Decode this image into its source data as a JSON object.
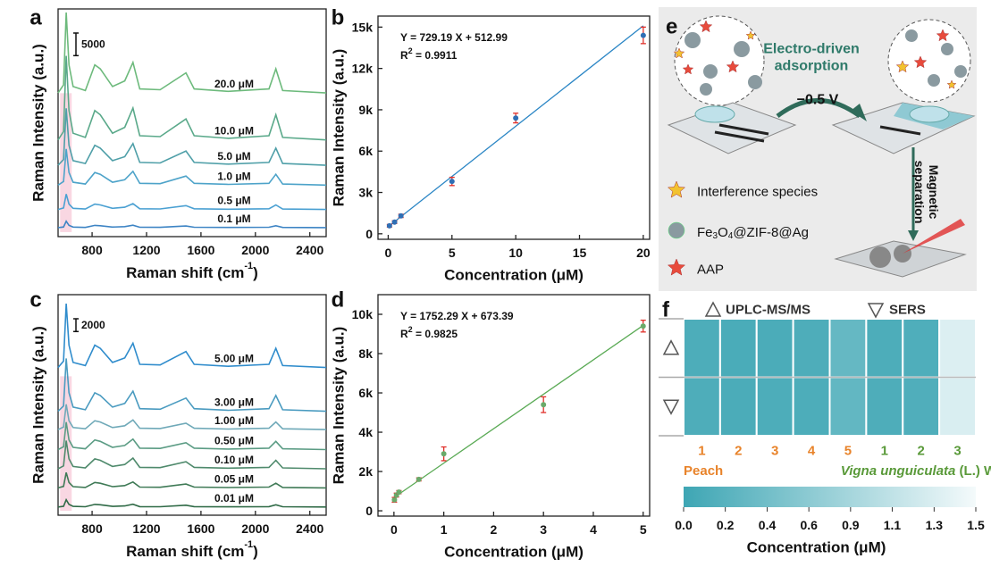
{
  "chart_data": [
    {
      "label": "a",
      "type": "line",
      "xlabel": [
        "Raman shift (cm",
        "-1",
        ")"
      ],
      "ylabel": "Raman Intensity (a.u.)",
      "x": [
        550,
        590,
        610,
        630,
        660,
        750,
        820,
        860,
        950,
        1040,
        1100,
        1150,
        1300,
        1490,
        1550,
        1800,
        2100,
        2150,
        2200,
        2520
      ],
      "xlim": [
        550,
        2520
      ],
      "xticks": [
        800,
        1200,
        1600,
        2000,
        2400
      ],
      "ylim": [
        0,
        50400
      ],
      "scale_bar": 5000,
      "series": [
        {
          "name": "20.0 μM",
          "color": "#6dba7c",
          "values": [
            31800,
            33580,
            49600,
            38030,
            33220,
            32330,
            38030,
            37140,
            33220,
            34470,
            38560,
            32690,
            32510,
            36250,
            32690,
            32160,
            32690,
            37140,
            32330,
            31800
          ]
        },
        {
          "name": "10.0 μM",
          "color": "#5aa98a",
          "values": [
            21400,
            23260,
            40000,
            27910,
            22890,
            21960,
            27910,
            26980,
            22890,
            24190,
            28470,
            22330,
            22140,
            26050,
            22330,
            21770,
            22330,
            26980,
            21960,
            21400
          ]
        },
        {
          "name": "5.0 μM",
          "color": "#4f9fa8",
          "values": [
            15800,
            17060,
            28400,
            20210,
            16810,
            16180,
            20210,
            19580,
            16810,
            17690,
            20590,
            16430,
            16300,
            18950,
            16430,
            16050,
            16430,
            19580,
            16180,
            15800
          ]
        },
        {
          "name": "1.0 μM",
          "color": "#4da3c9",
          "values": [
            11400,
            12200,
            19400,
            14200,
            12040,
            11640,
            14200,
            13800,
            12040,
            12600,
            14440,
            11800,
            11720,
            13400,
            11800,
            11560,
            11800,
            13800,
            11640,
            11400
          ]
        },
        {
          "name": "0.5 μM",
          "color": "#4aa0d2",
          "values": [
            6000,
            6340,
            9400,
            7190,
            6272,
            6102,
            7190,
            7020,
            6272,
            6510,
            7292,
            6170,
            6136,
            6850,
            6170,
            6068,
            6170,
            7020,
            6102,
            6000
          ]
        },
        {
          "name": "0.1 μM",
          "color": "#3d84c4",
          "values": [
            2000,
            2140,
            3400,
            2490,
            2112,
            2042,
            2490,
            2420,
            2112,
            2210,
            2532,
            2070,
            2056,
            2350,
            2070,
            2028,
            2070,
            2420,
            2042,
            2000
          ]
        }
      ]
    },
    {
      "label": "b",
      "type": "scatter",
      "xlabel": "Concentration (μM)",
      "ylabel": "Raman Intensity (a.u.)",
      "equation": "Y = 729.19 X + 512.99",
      "r_squared": [
        "R",
        "2",
        " = 0.9911"
      ],
      "xlim": [
        -0.8,
        20.5
      ],
      "xticks": [
        0,
        5,
        10,
        15,
        20
      ],
      "ylim": [
        -400,
        15800
      ],
      "yticks": [
        0,
        {
          "value": 3000,
          "label": "3k"
        },
        {
          "value": 6000,
          "label": "6k"
        },
        {
          "value": 9000,
          "label": "9k"
        },
        {
          "value": 12000,
          "label": "12k"
        },
        {
          "value": 15000,
          "label": "15k"
        }
      ],
      "x": [
        0.1,
        0.5,
        1,
        5,
        10,
        20
      ],
      "values": [
        580,
        850,
        1300,
        3800,
        8400,
        14400
      ],
      "errors": [
        100,
        100,
        120,
        300,
        350,
        600
      ],
      "color": "#2f6fb5",
      "error_color": "#e0302a",
      "fit": {
        "x": [
          0,
          20
        ],
        "values": [
          512.99,
          15096.79
        ],
        "color": "#2b86c5"
      }
    },
    {
      "label": "c",
      "type": "line",
      "xlabel": [
        "Raman shift (cm",
        "-1",
        ")"
      ],
      "ylabel": "Raman Intensity (a.u.)",
      "x": [
        550,
        590,
        610,
        630,
        660,
        750,
        820,
        860,
        950,
        1040,
        1100,
        1150,
        1300,
        1490,
        1550,
        1800,
        2100,
        2150,
        2200,
        2520
      ],
      "xlim": [
        550,
        2520
      ],
      "xticks": [
        800,
        1200,
        1600,
        2000,
        2400
      ],
      "ylim": [
        0,
        34600
      ],
      "scale_bar": 2000,
      "series": [
        {
          "name": "5.00 μM",
          "color": "#2f8ccc",
          "values": [
            23170,
            24173,
            33200,
            26680,
            23972,
            23471,
            26680,
            26179,
            23972,
            24675,
            26981,
            23672,
            23571,
            25678,
            23672,
            23371,
            23672,
            26179,
            23471,
            23170
          ]
        },
        {
          "name": "3.00 μM",
          "color": "#4a9bc0",
          "values": [
            16300,
            17130,
            24600,
            19205,
            16964,
            16549,
            19205,
            18790,
            16964,
            17545,
            19454,
            16715,
            16632,
            18375,
            16715,
            16466,
            16715,
            18790,
            16549,
            16300
          ]
        },
        {
          "name": "1.00 μM",
          "color": "#6fa9b8",
          "values": [
            13440,
            13836,
            17400,
            14826,
            13757,
            13559,
            14826,
            14628,
            13757,
            14034,
            14945,
            13638,
            13598,
            14430,
            13638,
            13519,
            13638,
            14628,
            13559,
            13440
          ]
        },
        {
          "name": "0.50 μM",
          "color": "#5b9c84",
          "values": [
            10300,
            10730,
            14600,
            11805,
            10644,
            10429,
            11805,
            11590,
            10644,
            10945,
            11934,
            10515,
            10472,
            11375,
            10515,
            10386,
            10515,
            11590,
            10429,
            10300
          ]
        },
        {
          "name": "0.10 μM",
          "color": "#4f8a6c",
          "values": [
            7290,
            7731,
            11700,
            8834,
            7643,
            7422,
            8834,
            8613,
            7643,
            7952,
            8966,
            7511,
            7466,
            8393,
            7511,
            7378,
            7511,
            8613,
            7422,
            7290
          ]
        },
        {
          "name": "0.05 μM",
          "color": "#3f7a56",
          "values": [
            4290,
            4531,
            6700,
            5134,
            4483,
            4362,
            5134,
            5013,
            4483,
            4652,
            5206,
            4411,
            4386,
            4893,
            4411,
            4338,
            4411,
            5013,
            4362,
            4290
          ]
        },
        {
          "name": "0.01 μM",
          "color": "#2f6a46",
          "values": [
            1290,
            1404,
            2430,
            1689,
            1381,
            1324,
            1689,
            1632,
            1381,
            1461,
            1723,
            1347,
            1336,
            1575,
            1347,
            1313,
            1347,
            1632,
            1324,
            1290
          ]
        }
      ]
    },
    {
      "label": "d",
      "type": "scatter",
      "xlabel": "Concentration (μM)",
      "ylabel": "Raman Intensity (a.u.)",
      "equation": "Y = 1752.29 X + 673.39",
      "r_squared": [
        "R",
        "2",
        " = 0.9825"
      ],
      "xlim": [
        -0.32,
        5.13
      ],
      "xticks": [
        0,
        1,
        2,
        3,
        4,
        5
      ],
      "ylim": [
        -270,
        11000
      ],
      "yticks": [
        0,
        {
          "value": 2000,
          "label": "2k"
        },
        {
          "value": 4000,
          "label": "4k"
        },
        {
          "value": 6000,
          "label": "6k"
        },
        {
          "value": 8000,
          "label": "8k"
        },
        {
          "value": 10000,
          "label": "10k"
        }
      ],
      "x": [
        0.01,
        0.05,
        0.1,
        0.5,
        1,
        3,
        5
      ],
      "values": [
        560,
        800,
        950,
        1600,
        2900,
        5400,
        9400
      ],
      "errors": [
        120,
        100,
        80,
        80,
        350,
        400,
        300
      ],
      "color": "#6aaa6a",
      "error_color": "#e0302a",
      "fit": {
        "x": [
          0,
          5
        ],
        "values": [
          673.39,
          9434.84
        ],
        "color": "#5aaa55"
      }
    },
    {
      "label": "f",
      "type": "heatmap",
      "rows": [
        "UPLC-MS/MS",
        "SERS"
      ],
      "categories": [
        "1",
        "2",
        "3",
        "4",
        "5",
        "1",
        "2",
        "3"
      ],
      "category_colors": [
        "#e8832a",
        "#e8832a",
        "#e8832a",
        "#e8832a",
        "#e8832a",
        "#5a9a3a",
        "#5a9a3a",
        "#5a9a3a"
      ],
      "groups": [
        {
          "name": [
            "Peach"
          ],
          "color": "#e8832a"
        },
        {
          "name": [
            "Vigna unguiculata",
            " (L.) Walp."
          ],
          "color": "#5a9a3a"
        }
      ],
      "values": [
        [
          0.12,
          0.1,
          0.11,
          0.13,
          0.32,
          0.12,
          0.14,
          1.3
        ],
        [
          0.13,
          0.11,
          0.12,
          0.12,
          0.3,
          0.13,
          0.15,
          1.28
        ]
      ],
      "clim": [
        0,
        1.5
      ],
      "colormap": [
        "#3ea6b4",
        "#f4fafb"
      ],
      "colorbar_title": "Concentration (μM)",
      "colorbar_ticks": [
        {
          "value": 0,
          "label": "0.0"
        },
        {
          "value": 0.214,
          "label": "0.2"
        },
        {
          "value": 0.429,
          "label": "0.4"
        },
        {
          "value": 0.643,
          "label": "0.6"
        },
        {
          "value": 0.857,
          "label": "0.9"
        },
        {
          "value": 1.071,
          "label": "1.1"
        },
        {
          "value": 1.286,
          "label": "1.3"
        },
        {
          "value": 1.5,
          "label": "1.5"
        }
      ]
    }
  ],
  "diagram": {
    "label": "e",
    "title": [
      "Electro-driven",
      "adsorption"
    ],
    "voltage": "−0.5 V",
    "separation": [
      "Magnetic",
      "separation"
    ],
    "legend": {
      "interference": "Interference species",
      "particle": [
        "Fe",
        "3",
        "O",
        "4",
        "@ZIF-8@Ag"
      ],
      "analyte": "AAP"
    }
  }
}
